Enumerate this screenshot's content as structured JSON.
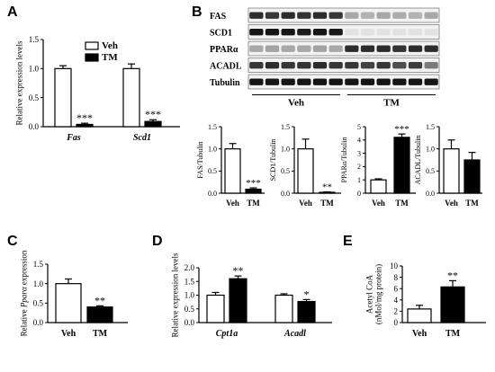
{
  "panels": {
    "A": "A",
    "B": "B",
    "C": "C",
    "D": "D",
    "E": "E"
  },
  "chart_data": [
    {
      "id": "A",
      "type": "bar",
      "ylabel": "Relative expression levels",
      "ylim": [
        0,
        1.5
      ],
      "yticks": [
        "0.0",
        "0.5",
        "1.0",
        "1.5"
      ],
      "categories": [
        "Fas",
        "Scd1"
      ],
      "series": [
        {
          "name": "Veh",
          "values": [
            1.0,
            1.0
          ],
          "errors": [
            0.05,
            0.08
          ],
          "fill": "#ffffff"
        },
        {
          "name": "TM",
          "values": [
            0.04,
            0.09
          ],
          "errors": [
            0.02,
            0.03
          ],
          "fill": "#000000"
        }
      ],
      "significance": [
        "***",
        "***"
      ],
      "legend": "top-right"
    },
    {
      "id": "B-FAS",
      "type": "bar",
      "ylabel": "FAS/Tubulin",
      "ylim": [
        0,
        1.5
      ],
      "yticks": [
        "0.0",
        "0.5",
        "1.0",
        "1.5"
      ],
      "categories": [
        "Veh",
        "TM"
      ],
      "values": [
        1.0,
        0.09
      ],
      "errors": [
        0.12,
        0.03
      ],
      "significance": [
        "",
        "***"
      ]
    },
    {
      "id": "B-SCD1",
      "type": "bar",
      "ylabel": "SCD1/Tubulin",
      "ylim": [
        0,
        1.5
      ],
      "yticks": [
        "0.0",
        "0.5",
        "1.0",
        "1.5"
      ],
      "categories": [
        "Veh",
        "TM"
      ],
      "values": [
        1.0,
        0.02
      ],
      "errors": [
        0.22,
        0.01
      ],
      "significance": [
        "",
        "**"
      ]
    },
    {
      "id": "B-PPARa",
      "type": "bar",
      "ylabel": "PPARα/Tubulin",
      "ylim": [
        0,
        5
      ],
      "yticks": [
        "0",
        "1",
        "2",
        "3",
        "4",
        "5"
      ],
      "categories": [
        "Veh",
        "TM"
      ],
      "values": [
        1.0,
        4.2
      ],
      "errors": [
        0.08,
        0.25
      ],
      "significance": [
        "",
        "***"
      ]
    },
    {
      "id": "B-ACADL",
      "type": "bar",
      "ylabel": "ACADL/Tubulin",
      "ylim": [
        0,
        1.5
      ],
      "yticks": [
        "0.0",
        "0.5",
        "1.0",
        "1.5"
      ],
      "categories": [
        "Veh",
        "TM"
      ],
      "values": [
        1.0,
        0.75
      ],
      "errors": [
        0.2,
        0.17
      ],
      "significance": [
        "",
        ""
      ]
    },
    {
      "id": "C",
      "type": "bar",
      "ylabel": "Relative Pparα expression",
      "ylim": [
        0,
        1.5
      ],
      "yticks": [
        "0.0",
        "0.5",
        "1.0",
        "1.5"
      ],
      "categories": [
        "Veh",
        "TM"
      ],
      "values": [
        1.0,
        0.4
      ],
      "errors": [
        0.12,
        0.03
      ],
      "significance": [
        "",
        "**"
      ]
    },
    {
      "id": "D",
      "type": "bar",
      "ylabel": "Relative expression levels",
      "ylim": [
        0,
        2.0
      ],
      "yticks": [
        "0.0",
        "0.5",
        "1.0",
        "1.5",
        "2.0"
      ],
      "categories": [
        "Cpt1a",
        "Acadl"
      ],
      "series": [
        {
          "name": "Veh",
          "values": [
            1.0,
            1.0
          ],
          "errors": [
            0.1,
            0.05
          ]
        },
        {
          "name": "TM",
          "values": [
            1.6,
            0.77
          ],
          "errors": [
            0.1,
            0.07
          ]
        }
      ],
      "significance": [
        "**",
        "*"
      ]
    },
    {
      "id": "E",
      "type": "bar",
      "ylabel": "Acetyl CoA\n(nMol/mg protein)",
      "ylim": [
        0,
        10
      ],
      "yticks": [
        "0",
        "2",
        "4",
        "6",
        "8",
        "10"
      ],
      "categories": [
        "Veh",
        "TM"
      ],
      "values": [
        2.4,
        6.3
      ],
      "errors": [
        0.65,
        1.1
      ],
      "significance": [
        "",
        "**"
      ]
    }
  ],
  "blot": {
    "rows": [
      "FAS",
      "SCD1",
      "PPARα",
      "ACADL",
      "Tubulin"
    ],
    "groups": [
      "Veh",
      "TM"
    ],
    "lanes_per_group": 6,
    "intensity": [
      [
        0.85,
        0.8,
        0.85,
        0.82,
        0.85,
        0.8,
        0.3,
        0.25,
        0.3,
        0.28,
        0.25,
        0.3
      ],
      [
        0.95,
        0.95,
        0.95,
        0.92,
        0.95,
        0.93,
        0.04,
        0.04,
        0.04,
        0.04,
        0.04,
        0.04
      ],
      [
        0.3,
        0.32,
        0.3,
        0.3,
        0.32,
        0.3,
        0.85,
        0.85,
        0.85,
        0.82,
        0.85,
        0.85
      ],
      [
        0.8,
        0.85,
        0.8,
        0.82,
        0.85,
        0.8,
        0.8,
        0.75,
        0.8,
        0.7,
        0.78,
        0.5
      ],
      [
        0.95,
        0.95,
        0.95,
        0.95,
        0.95,
        0.95,
        0.95,
        0.95,
        0.95,
        0.95,
        0.95,
        0.95
      ]
    ]
  }
}
